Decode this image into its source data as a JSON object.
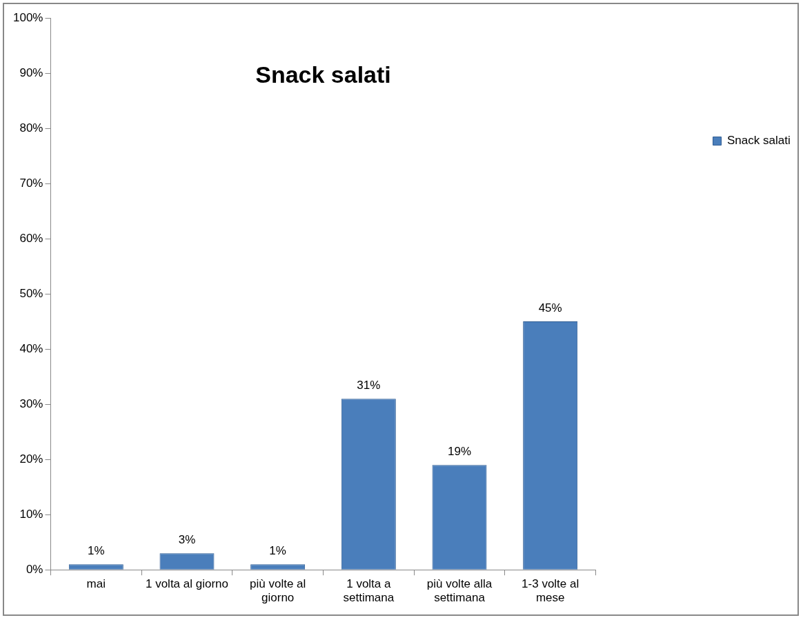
{
  "chart_data": {
    "type": "bar",
    "title": "Snack salati",
    "categories": [
      "mai",
      "1 volta al giorno",
      "più volte al giorno",
      "1 volta a settimana",
      "più volte alla settimana",
      "1-3 volte al mese"
    ],
    "series": [
      {
        "name": "Snack salati",
        "color": "#4a7ebb",
        "values": [
          1,
          3,
          1,
          31,
          19,
          45
        ],
        "value_labels": [
          "1%",
          "3%",
          "1%",
          "31%",
          "19%",
          "45%"
        ]
      }
    ],
    "ylim": [
      0,
      100
    ],
    "yticks": [
      {
        "value": 0,
        "label": "0%"
      },
      {
        "value": 10,
        "label": "10%"
      },
      {
        "value": 20,
        "label": "20%"
      },
      {
        "value": 30,
        "label": "30%"
      },
      {
        "value": 40,
        "label": "40%"
      },
      {
        "value": 50,
        "label": "50%"
      },
      {
        "value": 60,
        "label": "60%"
      },
      {
        "value": 70,
        "label": "70%"
      },
      {
        "value": 80,
        "label": "80%"
      },
      {
        "value": 90,
        "label": "90%"
      },
      {
        "value": 100,
        "label": "100%"
      }
    ],
    "grid": false,
    "legend": "right"
  }
}
